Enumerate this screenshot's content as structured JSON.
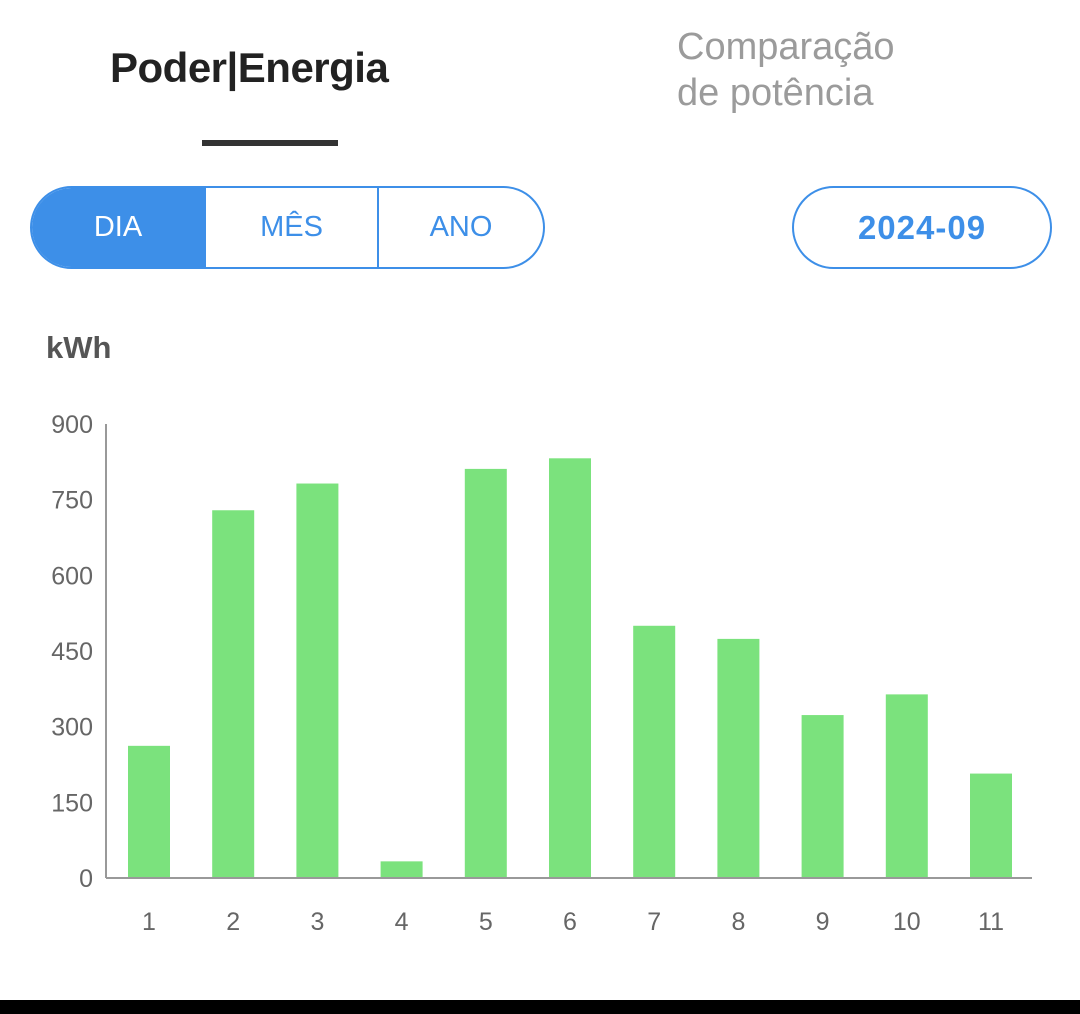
{
  "tabs": {
    "power_energy": "Poder|Energia",
    "power_compare_line1": "Comparação",
    "power_compare_line2": "de potência"
  },
  "period_selector": {
    "day": "DIA",
    "month": "MÊS",
    "year": "ANO",
    "selected": "DIA"
  },
  "date_button": "2024-09",
  "unit_label": "kWh",
  "colors": {
    "accent": "#3d8fe8",
    "bar": "#7be27d"
  },
  "chart_data": {
    "type": "bar",
    "categories": [
      "1",
      "2",
      "3",
      "4",
      "5",
      "6",
      "7",
      "8",
      "9",
      "10",
      "11"
    ],
    "values": [
      262,
      729,
      782,
      33,
      811,
      832,
      500,
      474,
      323,
      364,
      207
    ],
    "ylabel": "kWh",
    "ylim": [
      0,
      900
    ],
    "yticks": [
      "0",
      "150",
      "300",
      "450",
      "600",
      "750",
      "900"
    ],
    "grid": false,
    "legend": "none"
  }
}
